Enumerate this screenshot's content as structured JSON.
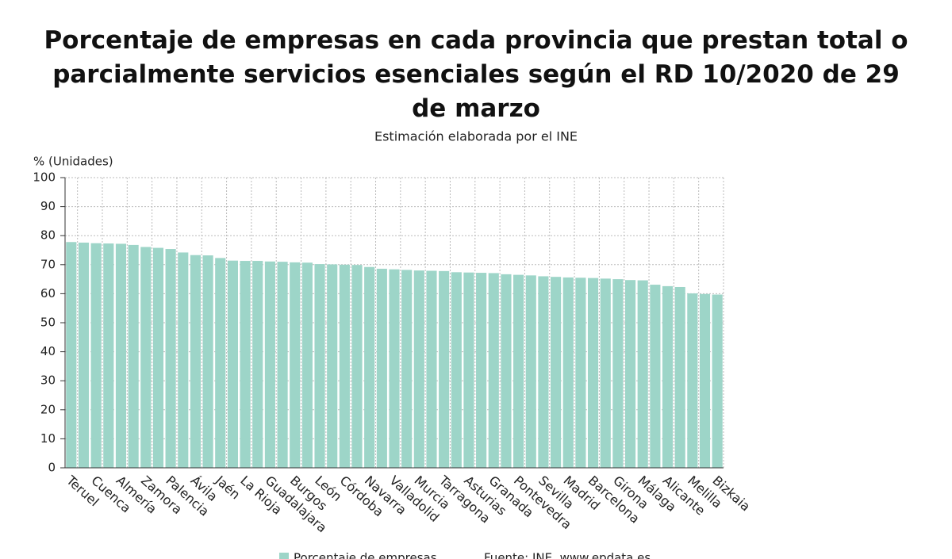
{
  "chart_data": {
    "type": "bar",
    "title": "Porcentaje de empresas en cada provincia que prestan total o parcialmente servicios esenciales según el RD 10/2020 de 29 de marzo",
    "subtitle": "Estimación elaborada por el INE",
    "y_label": "% (Unidades)",
    "categories": [
      "Teruel",
      null,
      "Cuenca",
      null,
      "Almería",
      null,
      "Zamora",
      null,
      "Palencia",
      null,
      "Ávila",
      null,
      "Jaén",
      null,
      "La Rioja",
      null,
      "Guadalajara",
      null,
      "Burgos",
      null,
      "León",
      null,
      "Córdoba",
      null,
      "Navarra",
      null,
      "Valladolid",
      null,
      "Murcia",
      null,
      "Tarragona",
      null,
      "Asturias",
      null,
      "Granada",
      null,
      "Pontevedra",
      null,
      "Sevilla",
      null,
      "Madrid",
      null,
      "Barcelona",
      null,
      "Girona",
      null,
      "Málaga",
      null,
      "Alicante",
      null,
      "Melilla",
      null,
      "Bizkaia"
    ],
    "series": [
      {
        "name": "Porcentaje de empresas",
        "color": "#9dd5c8",
        "values": [
          77.8,
          77.6,
          77.4,
          77.3,
          77.2,
          76.8,
          76.1,
          75.8,
          75.4,
          74.2,
          73.3,
          73.2,
          72.3,
          71.4,
          71.3,
          71.3,
          71.1,
          71.0,
          70.8,
          70.7,
          70.2,
          70.1,
          70.0,
          69.9,
          69.2,
          68.6,
          68.4,
          68.2,
          68.0,
          67.9,
          67.8,
          67.4,
          67.3,
          67.2,
          67.1,
          66.7,
          66.5,
          66.3,
          66.0,
          65.8,
          65.6,
          65.5,
          65.4,
          65.2,
          65.0,
          64.7,
          64.6,
          63.1,
          62.6,
          62.3,
          60.1,
          59.9,
          59.7
        ]
      }
    ],
    "source": "Fuente: INE. www.epdata.es",
    "ylim": [
      0,
      100
    ],
    "yticks": [
      0,
      10,
      20,
      30,
      40,
      50,
      60,
      70,
      80,
      90,
      100
    ],
    "grid": true
  }
}
